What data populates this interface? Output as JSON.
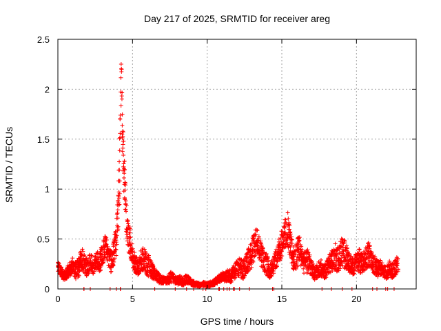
{
  "chart_data": {
    "type": "scatter",
    "title": "Day 217 of 2025, SRMTID for receiver areg",
    "xlabel": "GPS time / hours",
    "ylabel": "SRMTID / TECUs",
    "xlim": [
      0,
      24
    ],
    "ylim": [
      0,
      2.5
    ],
    "x_ticks": [
      0,
      5,
      10,
      15,
      20
    ],
    "x_tick_labels": [
      "0",
      "5",
      "10",
      "15",
      "20"
    ],
    "y_ticks": [
      0,
      0.5,
      1,
      1.5,
      2,
      2.5
    ],
    "y_tick_labels": [
      "0",
      "0.5",
      "1",
      "1.5",
      "2",
      "2.5"
    ],
    "grid": true,
    "marker": "+",
    "series": [
      {
        "name": "SRMTID",
        "color": "#ff0000",
        "x": [
          0.0,
          0.2,
          0.4,
          0.6,
          0.8,
          1.0,
          1.2,
          1.4,
          1.6,
          1.8,
          2.0,
          2.2,
          2.4,
          2.6,
          2.8,
          3.0,
          3.2,
          3.4,
          3.6,
          3.8,
          3.9,
          4.0,
          4.05,
          4.1,
          4.15,
          4.2,
          4.25,
          4.3,
          4.35,
          4.4,
          4.45,
          4.5,
          4.6,
          4.7,
          4.8,
          4.9,
          5.0,
          5.2,
          5.4,
          5.6,
          5.8,
          6.0,
          6.2,
          6.4,
          6.6,
          6.8,
          7.0,
          7.2,
          7.4,
          7.6,
          7.8,
          8.0,
          8.2,
          8.4,
          8.6,
          8.8,
          9.0,
          9.2,
          9.4,
          9.6,
          9.8,
          10.0,
          10.2,
          10.4,
          10.6,
          10.8,
          11.0,
          11.2,
          11.4,
          11.6,
          11.8,
          12.0,
          12.2,
          12.4,
          12.6,
          12.8,
          13.0,
          13.2,
          13.4,
          13.6,
          13.8,
          14.0,
          14.2,
          14.4,
          14.6,
          14.8,
          15.0,
          15.2,
          15.4,
          15.6,
          15.8,
          16.0,
          16.2,
          16.4,
          16.6,
          16.8,
          17.0,
          17.2,
          17.4,
          17.6,
          17.8,
          18.0,
          18.2,
          18.4,
          18.6,
          18.8,
          19.0,
          19.2,
          19.4,
          19.6,
          19.8,
          20.0,
          20.2,
          20.4,
          20.6,
          20.8,
          21.0,
          21.2,
          21.4,
          21.6,
          21.8,
          22.0,
          22.2,
          22.4,
          22.6,
          22.8
        ],
        "y": [
          0.22,
          0.17,
          0.13,
          0.16,
          0.2,
          0.24,
          0.18,
          0.22,
          0.3,
          0.25,
          0.2,
          0.28,
          0.22,
          0.3,
          0.26,
          0.36,
          0.45,
          0.3,
          0.27,
          0.42,
          0.5,
          0.65,
          0.82,
          1.05,
          1.35,
          1.62,
          2.25,
          1.72,
          1.52,
          1.3,
          1.12,
          0.92,
          0.7,
          0.55,
          0.5,
          0.42,
          0.3,
          0.25,
          0.22,
          0.3,
          0.28,
          0.25,
          0.2,
          0.16,
          0.13,
          0.1,
          0.09,
          0.08,
          0.1,
          0.12,
          0.09,
          0.08,
          0.09,
          0.07,
          0.1,
          0.08,
          0.06,
          0.05,
          0.04,
          0.04,
          0.05,
          0.04,
          0.05,
          0.06,
          0.08,
          0.1,
          0.12,
          0.11,
          0.14,
          0.12,
          0.17,
          0.2,
          0.22,
          0.18,
          0.25,
          0.3,
          0.36,
          0.45,
          0.48,
          0.35,
          0.28,
          0.25,
          0.18,
          0.22,
          0.3,
          0.38,
          0.45,
          0.55,
          0.6,
          0.42,
          0.3,
          0.35,
          0.4,
          0.28,
          0.25,
          0.3,
          0.2,
          0.15,
          0.18,
          0.22,
          0.16,
          0.2,
          0.25,
          0.3,
          0.32,
          0.28,
          0.38,
          0.35,
          0.3,
          0.25,
          0.2,
          0.3,
          0.28,
          0.25,
          0.3,
          0.35,
          0.3,
          0.25,
          0.2,
          0.22,
          0.18,
          0.16,
          0.2,
          0.18,
          0.22,
          0.25
        ],
        "spread": [
          0.05,
          0.05,
          0.04,
          0.05,
          0.06,
          0.07,
          0.07,
          0.08,
          0.1,
          0.08,
          0.07,
          0.08,
          0.07,
          0.08,
          0.08,
          0.1,
          0.08,
          0.08,
          0.1,
          0.12,
          0.14,
          0.2,
          0.22,
          0.25,
          0.3,
          0.3,
          0.08,
          0.25,
          0.25,
          0.22,
          0.2,
          0.2,
          0.15,
          0.15,
          0.12,
          0.12,
          0.1,
          0.08,
          0.07,
          0.1,
          0.1,
          0.1,
          0.08,
          0.06,
          0.05,
          0.04,
          0.03,
          0.03,
          0.04,
          0.05,
          0.03,
          0.03,
          0.04,
          0.03,
          0.04,
          0.03,
          0.02,
          0.02,
          0.02,
          0.01,
          0.02,
          0.02,
          0.02,
          0.02,
          0.03,
          0.03,
          0.04,
          0.04,
          0.05,
          0.05,
          0.06,
          0.07,
          0.08,
          0.08,
          0.08,
          0.1,
          0.12,
          0.12,
          0.1,
          0.1,
          0.1,
          0.1,
          0.06,
          0.07,
          0.08,
          0.1,
          0.12,
          0.12,
          0.14,
          0.12,
          0.1,
          0.12,
          0.12,
          0.1,
          0.1,
          0.1,
          0.07,
          0.05,
          0.06,
          0.07,
          0.06,
          0.07,
          0.08,
          0.1,
          0.12,
          0.1,
          0.12,
          0.12,
          0.1,
          0.08,
          0.07,
          0.08,
          0.1,
          0.08,
          0.1,
          0.1,
          0.1,
          0.08,
          0.07,
          0.07,
          0.06,
          0.05,
          0.07,
          0.06,
          0.07,
          0.08
        ]
      }
    ]
  }
}
